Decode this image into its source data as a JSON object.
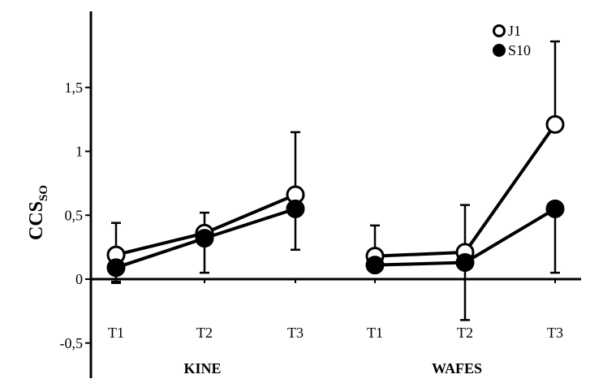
{
  "chart_data": {
    "type": "line",
    "ylabel": "CCS",
    "ylabel_subscript": "SO",
    "ylim": [
      -0.65,
      1.95
    ],
    "yticks": [
      -0.5,
      0,
      0.5,
      1,
      1.5
    ],
    "ytick_labels": [
      "-0,5",
      "0",
      "0,5",
      "1",
      "1,5"
    ],
    "groups": [
      {
        "name": "KINE",
        "categories": [
          "T1",
          "T2",
          "T3"
        ]
      },
      {
        "name": "WAFES",
        "categories": [
          "T1",
          "T2",
          "T3"
        ]
      }
    ],
    "series": [
      {
        "name": "J1",
        "marker": "open-circle",
        "groups": [
          {
            "values": [
              0.19,
              0.36,
              0.66
            ],
            "err_upper": [
              0.44,
              0.52,
              1.15
            ],
            "err_lower": [
              -0.03,
              0.05,
              0.23
            ]
          },
          {
            "values": [
              0.18,
              0.21,
              1.21
            ],
            "err_upper": [
              0.42,
              0.58,
              1.86
            ],
            "err_lower": [
              0.18,
              0.21,
              1.21
            ]
          }
        ]
      },
      {
        "name": "S10",
        "marker": "filled-circle",
        "groups": [
          {
            "values": [
              0.09,
              0.32,
              0.55
            ],
            "err_upper": [
              0.09,
              0.32,
              0.55
            ],
            "err_lower": [
              -0.02,
              0.32,
              0.55
            ]
          },
          {
            "values": [
              0.11,
              0.13,
              0.55
            ],
            "err_upper": [
              0.11,
              0.13,
              0.55
            ],
            "err_lower": [
              0.11,
              -0.32,
              0.05
            ]
          }
        ]
      }
    ],
    "legend_position": "top-right",
    "grid": false
  }
}
